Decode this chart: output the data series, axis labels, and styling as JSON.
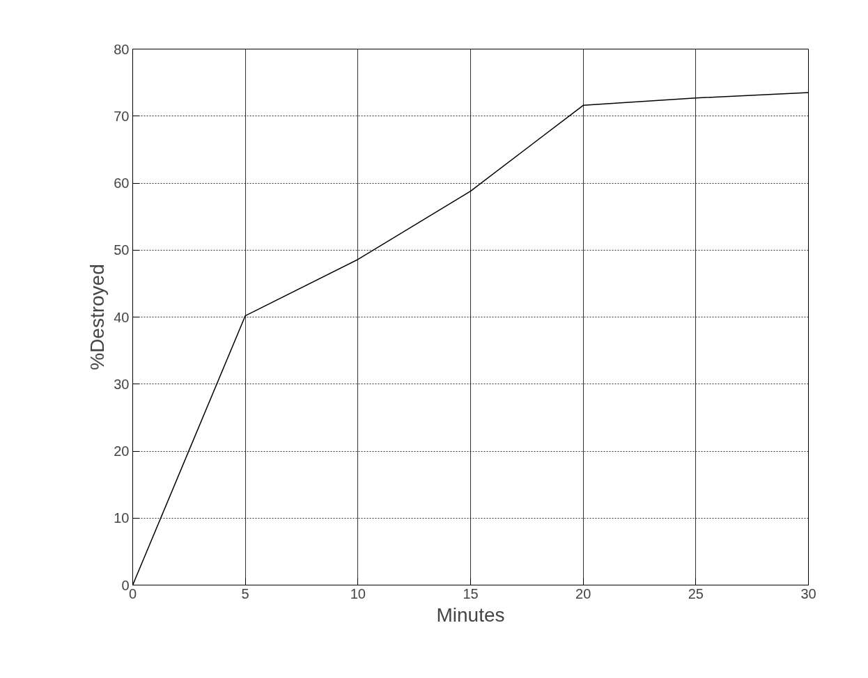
{
  "chart_data": {
    "type": "line",
    "xlabel": "Minutes",
    "ylabel": "%Destroyed",
    "x": [
      0,
      5,
      10,
      15,
      20,
      25,
      30
    ],
    "values": [
      0,
      40.2,
      48.6,
      58.8,
      71.6,
      72.7,
      73.5
    ],
    "color": "#000000",
    "marker": "none",
    "line_style": "solid",
    "xlim": [
      0,
      30
    ],
    "xticks": [
      0,
      5,
      10,
      15,
      20,
      25,
      30
    ],
    "ylim": [
      0,
      80
    ],
    "yticks": [
      0,
      10,
      20,
      30,
      40,
      50,
      60,
      70,
      80
    ],
    "grid": true
  }
}
